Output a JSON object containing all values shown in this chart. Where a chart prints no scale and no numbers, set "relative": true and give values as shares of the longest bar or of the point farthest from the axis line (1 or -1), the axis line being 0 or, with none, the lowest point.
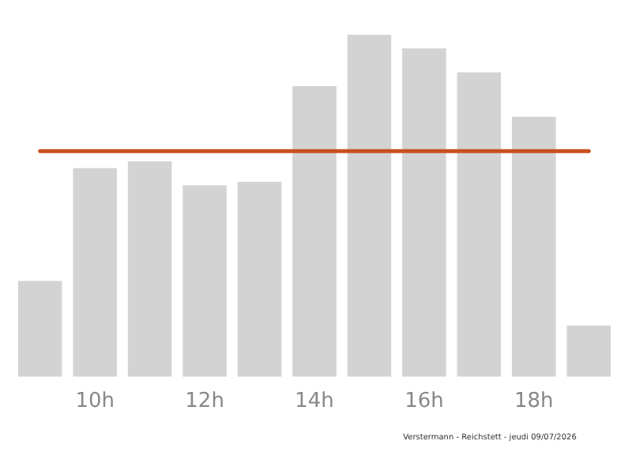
{
  "chart_data": {
    "type": "bar",
    "relative": true,
    "categories": [
      null,
      "10h",
      null,
      "12h",
      null,
      "14h",
      null,
      "16h",
      null,
      "18h",
      null
    ],
    "values": [
      0.28,
      0.61,
      0.63,
      0.56,
      0.57,
      0.85,
      1,
      0.96,
      0.89,
      0.76,
      0.15
    ],
    "color": "#d3d3d3",
    "ref_lines": [
      {
        "axis": "y",
        "value": 0.66,
        "color": "#c8501e"
      }
    ],
    "annotations": [
      "Verstermann - Reichstett - jeudi 09/07/2026"
    ],
    "grid": false,
    "legend": false
  }
}
